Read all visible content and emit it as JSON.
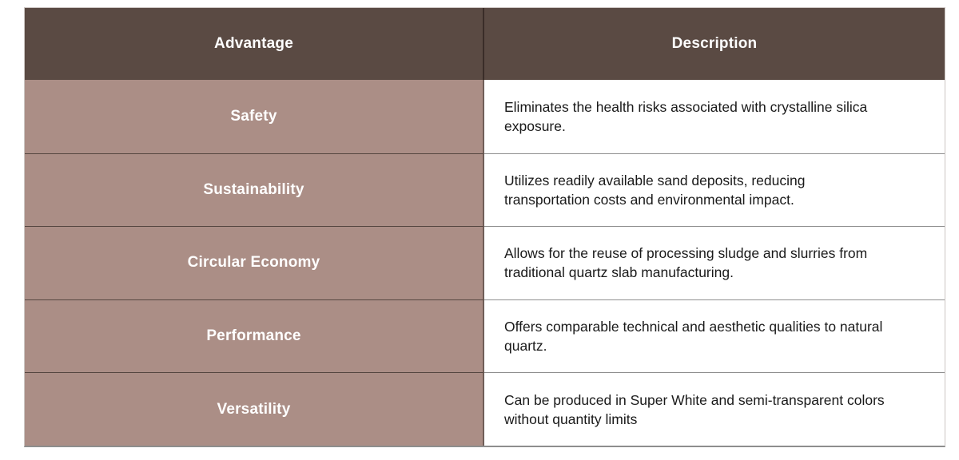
{
  "theme": {
    "header-bg": "#5a4a43",
    "header-text": "#ffffff",
    "advantage-bg": "#ab8e86",
    "row-label-text": "#ffffff",
    "description-text": "#1a1a1a",
    "header-divider": "#3a2d28",
    "body-divider": "#705e58",
    "dark-row-sep": "#554640",
    "light-row-sep": "#8f8f8f",
    "outer-border": "#ccc6c3",
    "bottom-border": "#8e8e8e"
  },
  "table": {
    "columns": {
      "advantage": "Advantage",
      "description": "Description"
    },
    "rows": [
      {
        "advantage": "Safety",
        "description": "Eliminates the health risks associated with crystalline silica exposure."
      },
      {
        "advantage": "Sustainability",
        "description": "Utilizes readily available sand deposits, reducing transportation costs and environmental impact."
      },
      {
        "advantage": "Circular Economy",
        "description": "Allows for the reuse of processing sludge and slurries from traditional quartz slab manufacturing."
      },
      {
        "advantage": "Performance",
        "description": "Offers comparable technical and aesthetic qualities to natural quartz."
      },
      {
        "advantage": "Versatility",
        "description": "Can be produced in Super White and semi-transparent colors without quantity limits"
      }
    ]
  }
}
